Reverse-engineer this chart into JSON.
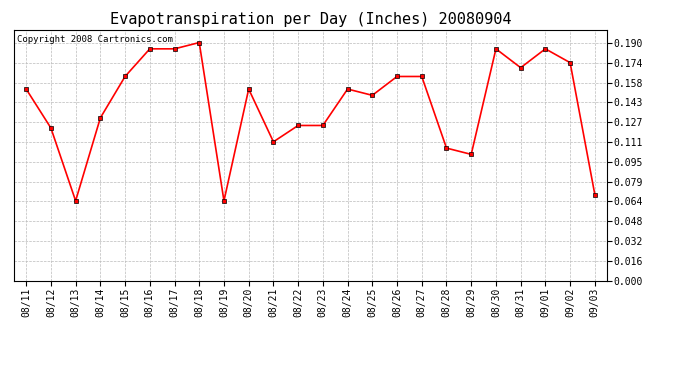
{
  "title": "Evapotranspiration per Day (Inches) 20080904",
  "copyright": "Copyright 2008 Cartronics.com",
  "dates": [
    "08/11",
    "08/12",
    "08/13",
    "08/14",
    "08/15",
    "08/16",
    "08/17",
    "08/18",
    "08/19",
    "08/20",
    "08/21",
    "08/22",
    "08/23",
    "08/24",
    "08/25",
    "08/26",
    "08/27",
    "08/28",
    "08/29",
    "08/30",
    "08/31",
    "09/01",
    "09/02",
    "09/03"
  ],
  "values": [
    0.153,
    0.122,
    0.064,
    0.13,
    0.163,
    0.185,
    0.185,
    0.19,
    0.064,
    0.153,
    0.111,
    0.124,
    0.124,
    0.153,
    0.148,
    0.163,
    0.163,
    0.106,
    0.101,
    0.185,
    0.17,
    0.185,
    0.174,
    0.069
  ],
  "line_color": "#ff0000",
  "marker": "s",
  "marker_size": 2.5,
  "marker_color": "#ff0000",
  "background_color": "#ffffff",
  "plot_bg_color": "#ffffff",
  "grid_color": "#bbbbbb",
  "yticks": [
    0.0,
    0.016,
    0.032,
    0.048,
    0.064,
    0.079,
    0.095,
    0.111,
    0.127,
    0.143,
    0.158,
    0.174,
    0.19
  ],
  "ylim": [
    0.0,
    0.2
  ],
  "title_fontsize": 11,
  "tick_fontsize": 7,
  "copyright_fontsize": 6.5
}
